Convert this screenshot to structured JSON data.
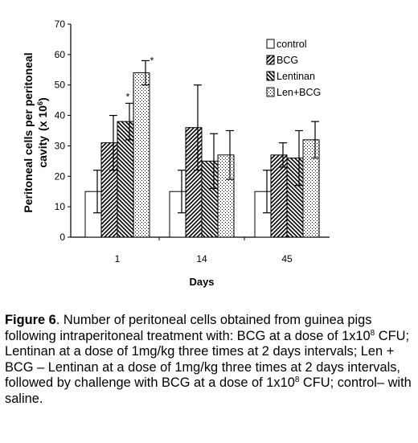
{
  "chart_data": {
    "type": "bar",
    "title": "",
    "xlabel": "Days",
    "ylabel_line1": "Peritoneal cells per peritoneal",
    "ylabel_line2": "cavity",
    "ylabel_unit": "(x 10",
    "ylabel_unit_exp": "6",
    "ylabel_unit_close": ")",
    "ylim": [
      0,
      70
    ],
    "yticks": [
      0,
      10,
      20,
      30,
      40,
      50,
      60,
      70
    ],
    "categories": [
      "1",
      "14",
      "45"
    ],
    "legend_position": "top-right",
    "grid": false,
    "series": [
      {
        "name": "control",
        "pattern": "empty",
        "values": [
          15,
          15,
          15
        ],
        "errors": [
          7,
          7,
          7
        ],
        "significance": [
          "",
          "",
          ""
        ]
      },
      {
        "name": "BCG",
        "pattern": "diag-up",
        "values": [
          31,
          36,
          27
        ],
        "errors": [
          9,
          14,
          4
        ],
        "significance": [
          "",
          "",
          ""
        ]
      },
      {
        "name": "Lentinan",
        "pattern": "diag-down",
        "values": [
          38,
          25,
          26
        ],
        "errors": [
          6,
          9,
          9
        ],
        "significance": [
          "*",
          "",
          ""
        ]
      },
      {
        "name": "Len+BCG",
        "pattern": "dots",
        "values": [
          54,
          27,
          32
        ],
        "errors": [
          4,
          8,
          6
        ],
        "significance": [
          "*",
          "",
          ""
        ]
      }
    ]
  },
  "caption": {
    "figure_label": "Figure 6",
    "p1": ". Number of peritoneal cells obtained from guinea pigs following intraperitoneal treatment with: BCG at a dose of 1x10",
    "exp1": "8",
    "p2": " CFU; Lentinan at a dose of 1mg/kg three times at 2 days intervals; Len + BCG – Lentinan at a dose of 1mg/kg three times at 2 days intervals, followed by challenge with BCG at a dose of 1x10",
    "exp2": "8",
    "p3": " CFU; control– with saline."
  }
}
